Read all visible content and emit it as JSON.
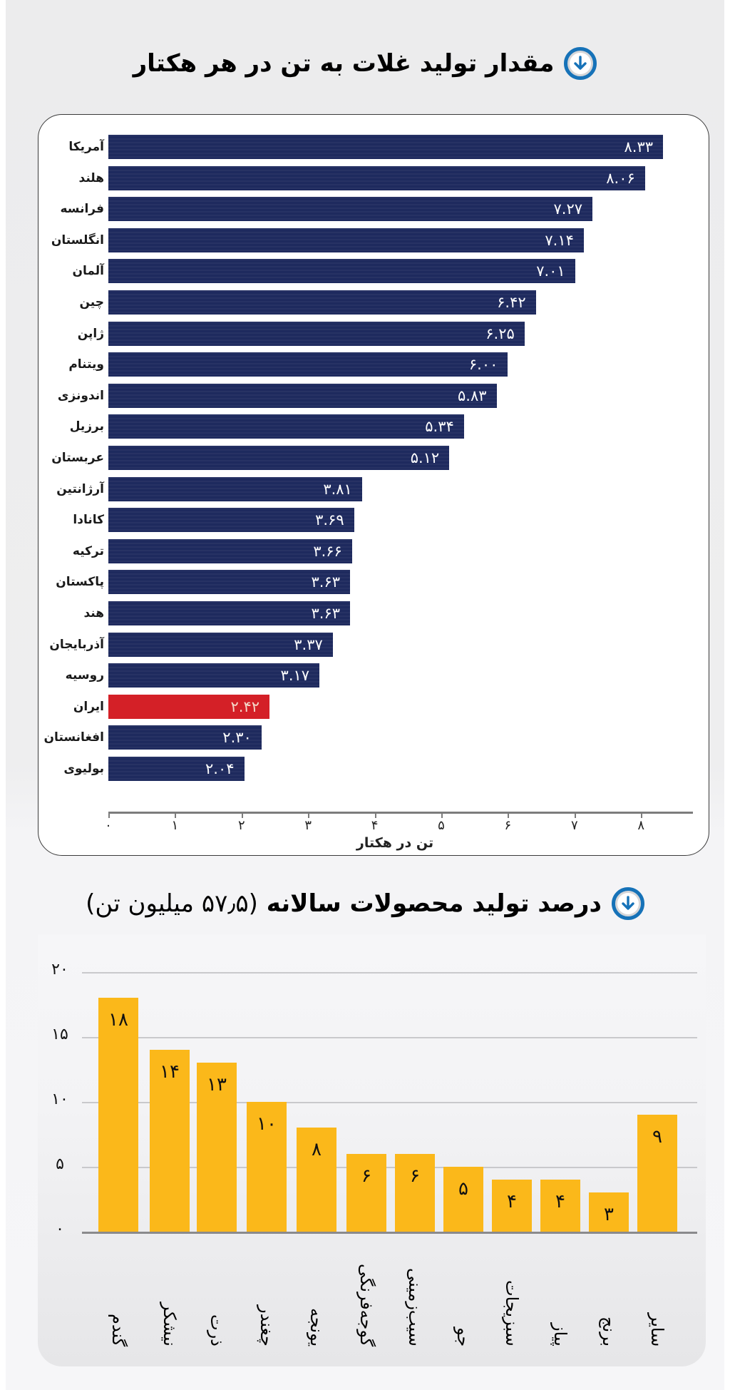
{
  "chart_data": [
    {
      "type": "bar",
      "orientation": "horizontal",
      "title": "مقدار تولید غلات به تن در هر هکتار",
      "xlabel": "تن در هکتار",
      "ylabel": "",
      "xlim": [
        0,
        8.5
      ],
      "grid": false,
      "x_ticks": [
        "۰",
        "۱",
        "۲",
        "۳",
        "۴",
        "۵",
        "۶",
        "۷",
        "۸"
      ],
      "categories": [
        "آمریکا",
        "هلند",
        "فرانسه",
        "انگلستان",
        "آلمان",
        "چین",
        "ژاپن",
        "ویتنام",
        "اندونزی",
        "برزیل",
        "عربستان",
        "آرژانتین",
        "کانادا",
        "ترکیه",
        "پاکستان",
        "هند",
        "آذربایجان",
        "روسیه",
        "ایران",
        "افغانستان",
        "بولیوی"
      ],
      "values": [
        8.33,
        8.06,
        7.27,
        7.14,
        7.01,
        6.42,
        6.25,
        6.0,
        5.83,
        5.34,
        5.12,
        3.81,
        3.69,
        3.66,
        3.63,
        3.63,
        3.37,
        3.17,
        2.42,
        2.3,
        2.04
      ],
      "value_labels": [
        "۸.۳۳",
        "۸.۰۶",
        "۷.۲۷",
        "۷.۱۴",
        "۷.۰۱",
        "۶.۴۲",
        "۶.۲۵",
        "۶.۰۰",
        "۵.۸۳",
        "۵.۳۴",
        "۵.۱۲",
        "۳.۸۱",
        "۳.۶۹",
        "۳.۶۶",
        "۳.۶۳",
        "۳.۶۳",
        "۳.۳۷",
        "۳.۱۷",
        "۲.۴۲",
        "۲.۳۰",
        "۲.۰۴"
      ],
      "highlight": "ایران",
      "colors": {
        "bar": "#1e2a5e",
        "highlight": "#d42027"
      }
    },
    {
      "type": "bar",
      "orientation": "vertical",
      "title": "درصد تولید محصولات سالانه (۵۷٫۵ میلیون تن)",
      "xlabel": "",
      "ylabel": "",
      "ylim": [
        0,
        20
      ],
      "grid": true,
      "y_ticks": [
        "۰",
        "۵",
        "۱۰",
        "۱۵",
        "۲۰"
      ],
      "categories": [
        "گندم",
        "نیشکر",
        "ذرت",
        "چغندر",
        "یونجه",
        "گوجه‌فرنگی",
        "سیب‌زمینی",
        "جو",
        "سبزیجات",
        "پیاز",
        "برنج",
        "سایر"
      ],
      "values": [
        18,
        14,
        13,
        10,
        8,
        6,
        6,
        5,
        4,
        4,
        3,
        9
      ],
      "value_labels": [
        "۱۸",
        "۱۴",
        "۱۳",
        "۱۰",
        "۸",
        "۶",
        "۶",
        "۵",
        "۴",
        "۴",
        "۳",
        "۹"
      ],
      "colors": {
        "bar": "#fbb81a"
      }
    }
  ],
  "section1": {
    "title": "مقدار تولید غلات به تن در هر هکتار",
    "icon": "download-circle-icon"
  },
  "section2": {
    "title_bold": "درصد تولید محصولات سالانه",
    "title_light": "(۵۷٫۵ میلیون تن)",
    "icon": "download-circle-icon"
  }
}
